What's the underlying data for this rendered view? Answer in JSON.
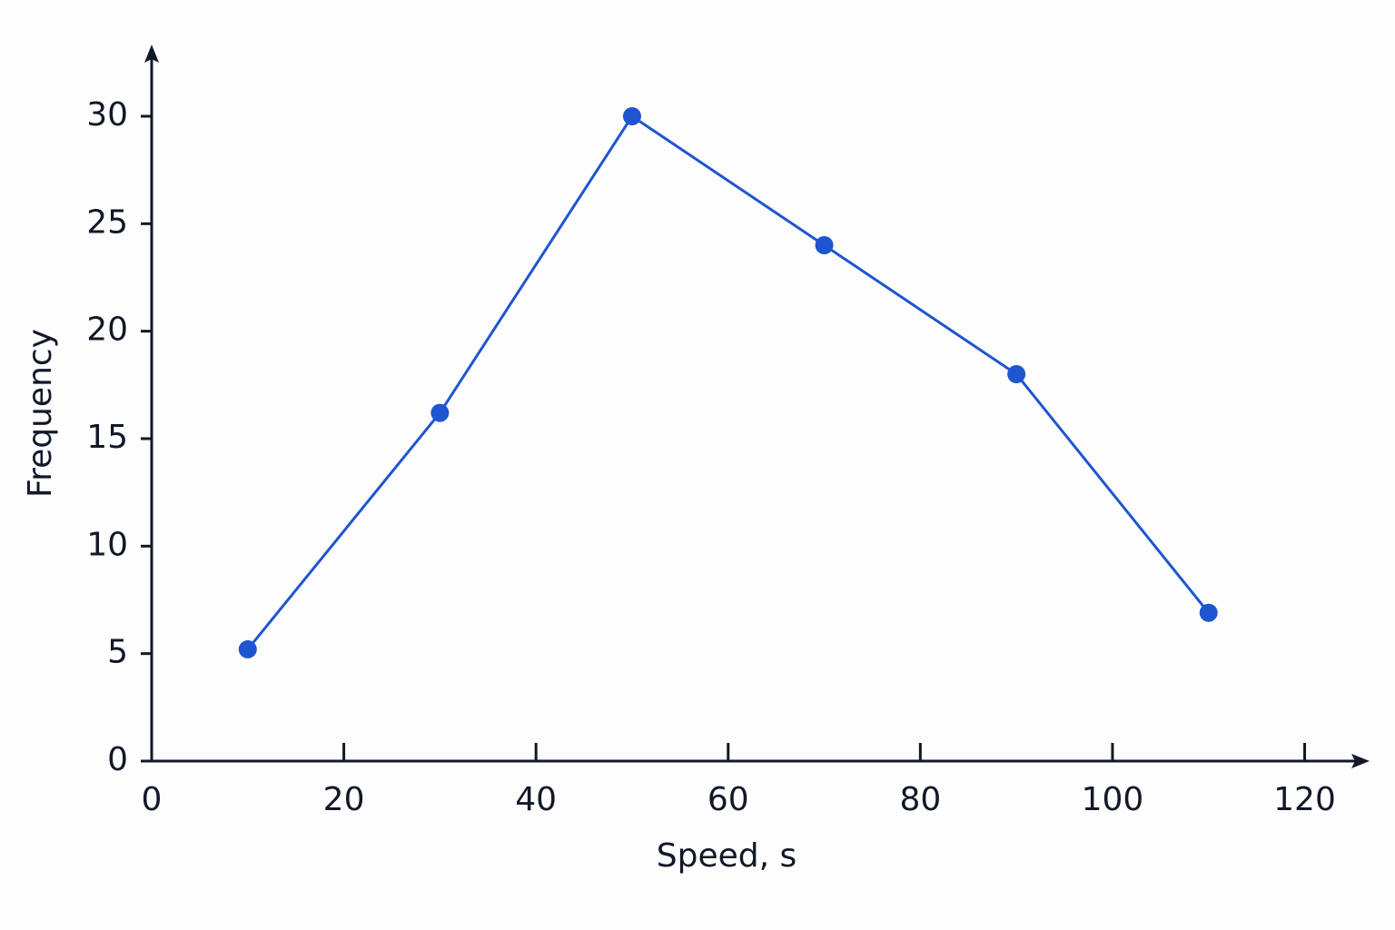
{
  "chart_data": {
    "type": "line",
    "x_label": "Speed, s",
    "y_label": "Frequency",
    "x": [
      10,
      30,
      50,
      70,
      90,
      110
    ],
    "values": [
      5.2,
      16.2,
      30,
      24,
      18,
      6.9
    ],
    "color": "#1f55d0",
    "xlim": [
      0,
      126
    ],
    "ylim": [
      0,
      33
    ],
    "xticks": [
      0,
      20,
      40,
      60,
      80,
      100,
      120
    ],
    "yticks": [
      0,
      5,
      10,
      15,
      20,
      25,
      30
    ],
    "grid": false
  }
}
